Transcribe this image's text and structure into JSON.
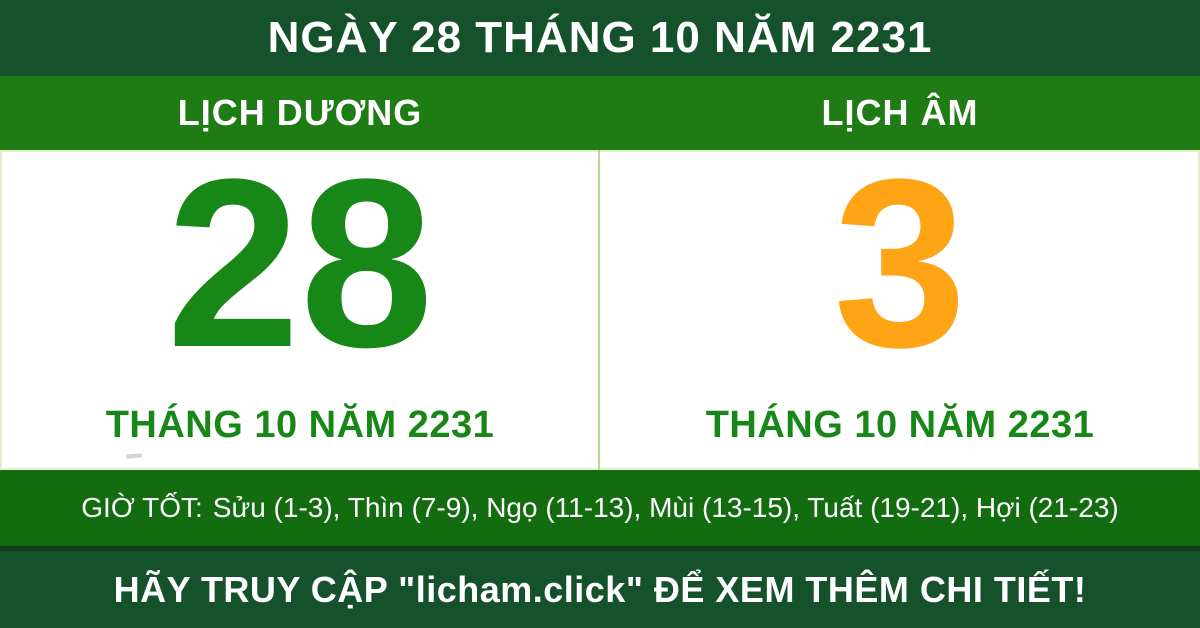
{
  "banner": {
    "title": "NGÀY 28 THÁNG 10 NĂM 2231"
  },
  "calendar": {
    "solar": {
      "header": "LỊCH DƯƠNG",
      "day": "28",
      "month_year_label": "THÁNG 10 NĂM 2231"
    },
    "lunar": {
      "header": "LỊCH ÂM",
      "day": "3",
      "month_year_label": "THÁNG 10 NĂM 2231"
    }
  },
  "good_hours": {
    "label": "GIỜ TỐT:",
    "hours": "Sửu (1-3), Thìn (7-9), Ngọ (11-13), Mùi (13-15), Tuất (19-21), Hợi (21-23)"
  },
  "footer": {
    "message": "HÃY TRUY CẬP \"licham.click\" ĐỂ XEM THÊM CHI TIẾT!"
  },
  "colors": {
    "dark_green": "#15522c",
    "header_green": "#1f7c15",
    "hours_green": "#136c10",
    "day_green": "#178717",
    "day_orange": "#ffa414",
    "divider_light_green": "#b7d998",
    "white": "#ffffff"
  }
}
